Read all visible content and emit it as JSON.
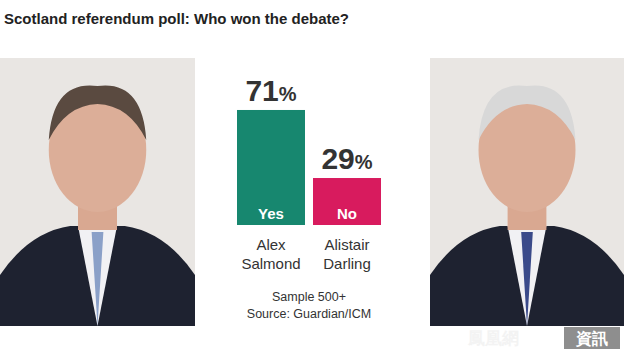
{
  "chart_data": {
    "type": "bar",
    "title": "Scotland referendum poll: Who won the debate?",
    "categories": [
      "Alex Salmond",
      "Alistair Darling"
    ],
    "values": [
      71,
      29
    ],
    "value_labels": [
      "71%",
      "29%"
    ],
    "colors": [
      "#17876f",
      "#d81b5e"
    ],
    "inner_labels": [
      "Yes",
      "No"
    ],
    "annotations": [
      "Sample 500+",
      "Source: Guardian/ICM"
    ],
    "watermark": [
      "鳳凰網",
      "資訊"
    ],
    "ylim": [
      0,
      100
    ],
    "data_labels": true,
    "tick_labels": false,
    "grid": false
  }
}
